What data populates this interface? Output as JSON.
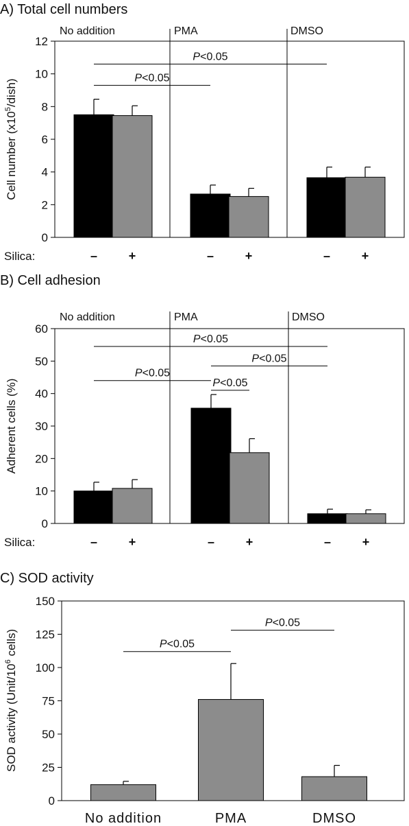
{
  "chart_data": [
    {
      "type": "bar",
      "title": "A) Total cell numbers",
      "ylabel": "Cell number (x10",
      "ylabel_sup": "5",
      "ylabel_tail": "/dish)",
      "ylim": [
        0,
        12
      ],
      "yticks": [
        "0",
        "2",
        "4",
        "6",
        "8",
        "10",
        "12"
      ],
      "groups": [
        "No addition",
        "PMA",
        "DMSO"
      ],
      "silica_label": "Silica:",
      "silica_signs": [
        "–",
        "+"
      ],
      "series": [
        {
          "values": [
            7.5,
            2.65,
            3.65
          ],
          "errors": [
            0.95,
            0.55,
            0.65
          ],
          "color": "#000000"
        },
        {
          "values": [
            7.45,
            2.5,
            3.68
          ],
          "errors": [
            0.6,
            0.5,
            0.62
          ],
          "color": "#8c8c8c"
        }
      ],
      "significance": [
        {
          "text": "<0.05",
          "prefix": "P",
          "from": 0,
          "to": 4,
          "level": 10.6
        },
        {
          "text": "<0.05",
          "prefix": "P",
          "from": 0,
          "to": 2,
          "level": 9.3
        }
      ]
    },
    {
      "type": "bar",
      "title": "B) Cell adhesion",
      "ylabel": "Adherent cells (%)",
      "ylim": [
        0,
        60
      ],
      "yticks": [
        "0",
        "10",
        "20",
        "30",
        "40",
        "50",
        "60"
      ],
      "groups": [
        "No addition",
        "PMA",
        "DMSO"
      ],
      "silica_label": "Silica:",
      "silica_signs": [
        "–",
        "+"
      ],
      "series": [
        {
          "values": [
            10.0,
            35.5,
            3.0
          ],
          "errors": [
            2.7,
            4.2,
            1.4
          ],
          "color": "#000000"
        },
        {
          "values": [
            10.8,
            21.8,
            3.0
          ],
          "errors": [
            2.7,
            4.3,
            1.2
          ],
          "color": "#8c8c8c"
        }
      ],
      "significance": [
        {
          "text": "<0.05",
          "prefix": "P",
          "from": 0,
          "to": 4,
          "level": 54.5
        },
        {
          "text": "<0.05",
          "prefix": "P",
          "from": 2,
          "to": 4,
          "level": 48.5
        },
        {
          "text": "<0.05",
          "prefix": "P",
          "from": 0,
          "to": 2,
          "level": 44.0
        },
        {
          "text": "<0.05",
          "prefix": "P",
          "from": 2,
          "to": 3,
          "level": 41.0
        }
      ]
    },
    {
      "type": "bar",
      "title": "C) SOD activity",
      "ylabel": "SOD activity (Unit/10",
      "ylabel_sup": "6",
      "ylabel_tail": " cells)",
      "ylim": [
        0,
        150
      ],
      "yticks": [
        "0",
        "25",
        "50",
        "75",
        "100",
        "125",
        "150"
      ],
      "categories": [
        "No addition",
        "PMA",
        "DMSO"
      ],
      "series": [
        {
          "values": [
            12,
            76,
            18
          ],
          "errors": [
            2.5,
            27,
            8.5
          ],
          "color": "#8c8c8c"
        }
      ],
      "significance": [
        {
          "text": "<0.05",
          "prefix": "P",
          "from": 0,
          "to": 1,
          "level": 112
        },
        {
          "text": "<0.05",
          "prefix": "P",
          "from": 1,
          "to": 2,
          "level": 128
        }
      ]
    }
  ]
}
